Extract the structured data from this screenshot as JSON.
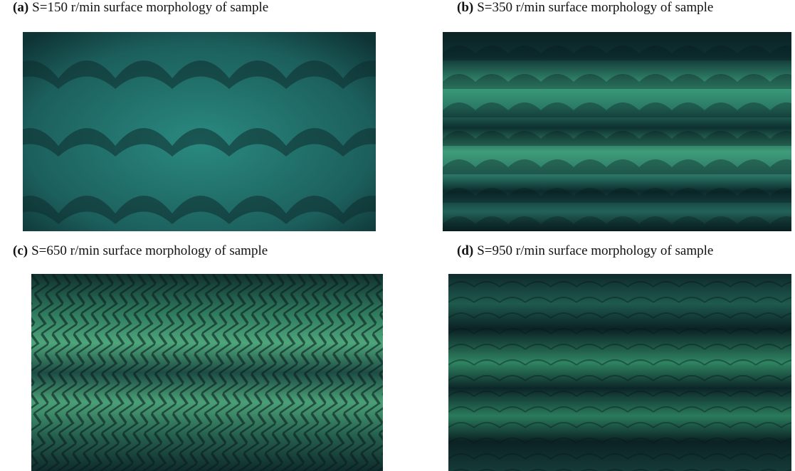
{
  "figure": {
    "panels": [
      {
        "label": "(a)",
        "caption": "S=150 r/min surface morphology of sample"
      },
      {
        "label": "(b)",
        "caption": "S=350 r/min surface morphology of sample"
      },
      {
        "label": "(c)",
        "caption": "S=650 r/min surface morphology of sample"
      },
      {
        "label": "(d)",
        "caption": "S=950 r/min surface morphology of sample"
      }
    ]
  }
}
